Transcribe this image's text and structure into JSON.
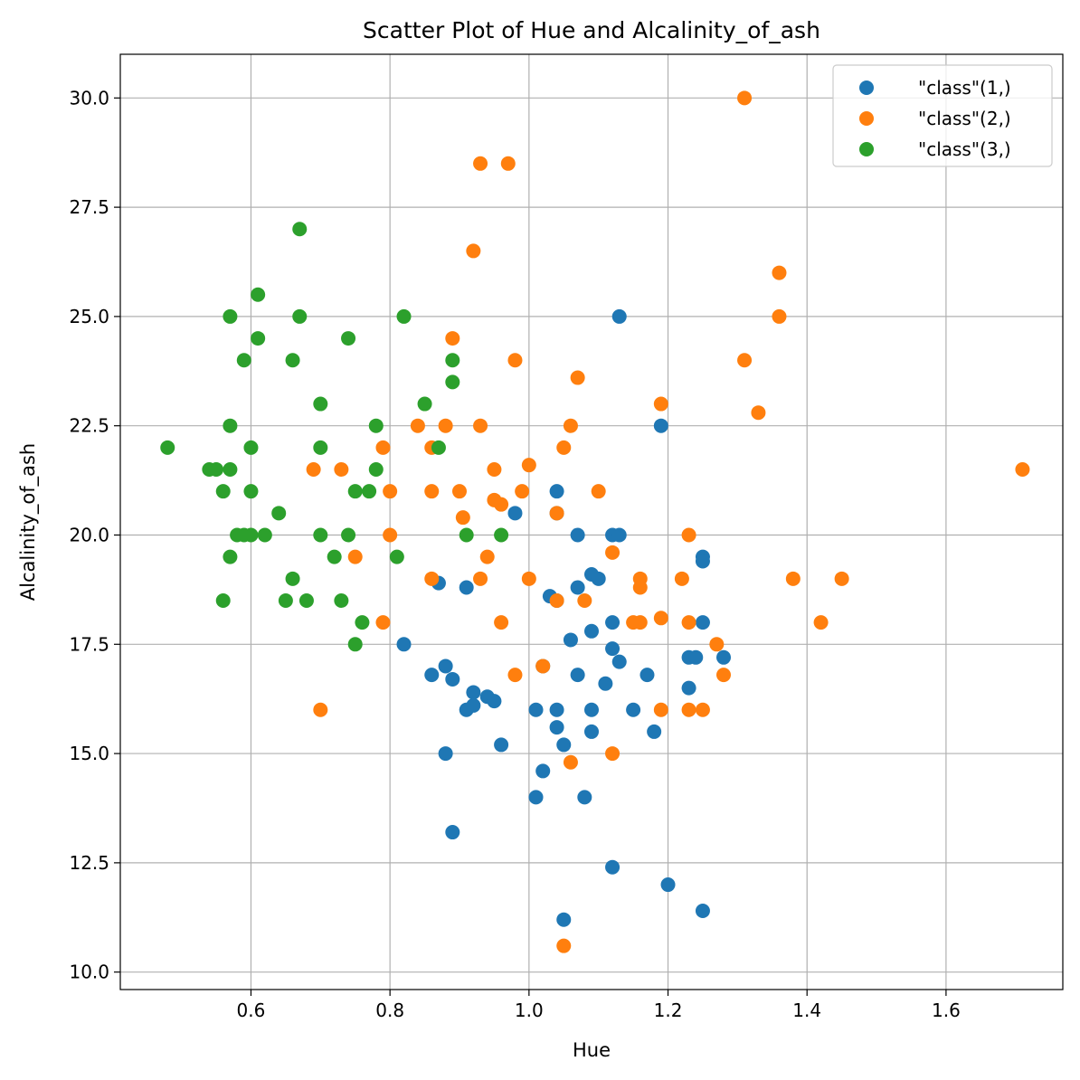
{
  "chart_data": {
    "type": "scatter",
    "title": "Scatter Plot of Hue and Alcalinity_of_ash",
    "xlabel": "Hue",
    "ylabel": "Alcalinity_of_ash",
    "xlim": [
      0.412,
      1.768
    ],
    "ylim": [
      9.6,
      31.0
    ],
    "xticks": [
      "0.6",
      "0.8",
      "1.0",
      "1.2",
      "1.4",
      "1.6"
    ],
    "yticks": [
      "10.0",
      "12.5",
      "15.0",
      "17.5",
      "20.0",
      "22.5",
      "25.0",
      "27.5",
      "30.0"
    ],
    "grid": true,
    "legend_position": "top-right",
    "series": [
      {
        "name": "\"class\"(1,)",
        "color": "#1f77b4",
        "points": [
          [
            1.13,
            25.0
          ],
          [
            1.19,
            22.5
          ],
          [
            0.98,
            20.5
          ],
          [
            1.04,
            21.0
          ],
          [
            1.04,
            20.5
          ],
          [
            1.07,
            20.0
          ],
          [
            1.12,
            20.0
          ],
          [
            1.13,
            20.0
          ],
          [
            1.25,
            19.5
          ],
          [
            1.25,
            19.4
          ],
          [
            1.09,
            19.1
          ],
          [
            1.1,
            19.0
          ],
          [
            0.87,
            18.9
          ],
          [
            0.91,
            18.8
          ],
          [
            1.07,
            18.8
          ],
          [
            1.03,
            18.6
          ],
          [
            1.04,
            18.5
          ],
          [
            1.12,
            18.0
          ],
          [
            1.25,
            18.0
          ],
          [
            1.09,
            17.8
          ],
          [
            1.06,
            17.6
          ],
          [
            0.82,
            17.5
          ],
          [
            1.12,
            17.4
          ],
          [
            1.23,
            17.2
          ],
          [
            1.24,
            17.2
          ],
          [
            1.28,
            17.2
          ],
          [
            1.13,
            17.1
          ],
          [
            0.88,
            17.0
          ],
          [
            1.02,
            17.0
          ],
          [
            0.86,
            16.8
          ],
          [
            1.07,
            16.8
          ],
          [
            1.17,
            16.8
          ],
          [
            0.89,
            16.7
          ],
          [
            1.11,
            16.6
          ],
          [
            1.23,
            16.5
          ],
          [
            0.92,
            16.4
          ],
          [
            0.94,
            16.3
          ],
          [
            0.95,
            16.2
          ],
          [
            0.92,
            16.1
          ],
          [
            0.91,
            16.0
          ],
          [
            1.01,
            16.0
          ],
          [
            1.04,
            16.0
          ],
          [
            1.09,
            16.0
          ],
          [
            1.15,
            16.0
          ],
          [
            1.04,
            15.6
          ],
          [
            1.09,
            15.5
          ],
          [
            1.18,
            15.5
          ],
          [
            0.96,
            15.2
          ],
          [
            1.05,
            15.2
          ],
          [
            0.88,
            15.0
          ],
          [
            1.02,
            14.6
          ],
          [
            1.01,
            14.0
          ],
          [
            1.08,
            14.0
          ],
          [
            0.89,
            13.2
          ],
          [
            1.12,
            12.4
          ],
          [
            1.2,
            12.0
          ],
          [
            1.25,
            11.4
          ],
          [
            1.05,
            11.2
          ]
        ]
      },
      {
        "name": "\"class\"(2,)",
        "color": "#ff7f0e",
        "points": [
          [
            1.31,
            30.0
          ],
          [
            0.93,
            28.5
          ],
          [
            0.97,
            28.5
          ],
          [
            0.92,
            26.5
          ],
          [
            1.36,
            26.0
          ],
          [
            1.36,
            25.0
          ],
          [
            0.89,
            24.5
          ],
          [
            1.31,
            24.0
          ],
          [
            0.98,
            24.0
          ],
          [
            1.07,
            23.6
          ],
          [
            1.19,
            23.0
          ],
          [
            1.33,
            22.8
          ],
          [
            0.84,
            22.5
          ],
          [
            0.88,
            22.5
          ],
          [
            0.93,
            22.5
          ],
          [
            1.06,
            22.5
          ],
          [
            0.79,
            22.0
          ],
          [
            0.86,
            22.0
          ],
          [
            1.05,
            22.0
          ],
          [
            1.71,
            21.5
          ],
          [
            0.69,
            21.5
          ],
          [
            0.73,
            21.5
          ],
          [
            0.95,
            21.5
          ],
          [
            1.0,
            21.6
          ],
          [
            0.8,
            21.0
          ],
          [
            0.86,
            21.0
          ],
          [
            0.9,
            21.0
          ],
          [
            0.99,
            21.0
          ],
          [
            1.1,
            21.0
          ],
          [
            0.95,
            20.8
          ],
          [
            0.96,
            20.7
          ],
          [
            1.04,
            20.5
          ],
          [
            0.905,
            20.4
          ],
          [
            0.8,
            20.0
          ],
          [
            1.23,
            20.0
          ],
          [
            1.12,
            19.6
          ],
          [
            0.75,
            19.5
          ],
          [
            0.94,
            19.5
          ],
          [
            0.86,
            19.0
          ],
          [
            0.93,
            19.0
          ],
          [
            1.0,
            19.0
          ],
          [
            1.16,
            19.0
          ],
          [
            1.22,
            19.0
          ],
          [
            1.38,
            19.0
          ],
          [
            1.45,
            19.0
          ],
          [
            1.16,
            18.8
          ],
          [
            1.04,
            18.5
          ],
          [
            1.08,
            18.5
          ],
          [
            1.19,
            18.1
          ],
          [
            0.79,
            18.0
          ],
          [
            0.96,
            18.0
          ],
          [
            1.15,
            18.0
          ],
          [
            1.16,
            18.0
          ],
          [
            1.23,
            18.0
          ],
          [
            1.42,
            18.0
          ],
          [
            1.27,
            17.5
          ],
          [
            1.02,
            17.0
          ],
          [
            0.98,
            16.8
          ],
          [
            1.28,
            16.8
          ],
          [
            0.7,
            16.0
          ],
          [
            1.19,
            16.0
          ],
          [
            1.23,
            16.0
          ],
          [
            1.25,
            16.0
          ],
          [
            1.12,
            15.0
          ],
          [
            1.06,
            14.8
          ],
          [
            1.05,
            10.6
          ]
        ]
      },
      {
        "name": "\"class\"(3,)",
        "color": "#2ca02c",
        "points": [
          [
            0.67,
            27.0
          ],
          [
            0.61,
            25.5
          ],
          [
            0.57,
            25.0
          ],
          [
            0.67,
            25.0
          ],
          [
            0.82,
            25.0
          ],
          [
            0.61,
            24.5
          ],
          [
            0.74,
            24.5
          ],
          [
            0.59,
            24.0
          ],
          [
            0.66,
            24.0
          ],
          [
            0.89,
            24.0
          ],
          [
            0.89,
            23.5
          ],
          [
            0.7,
            23.0
          ],
          [
            0.85,
            23.0
          ],
          [
            0.57,
            22.5
          ],
          [
            0.78,
            22.5
          ],
          [
            0.48,
            22.0
          ],
          [
            0.6,
            22.0
          ],
          [
            0.7,
            22.0
          ],
          [
            0.87,
            22.0
          ],
          [
            0.54,
            21.5
          ],
          [
            0.55,
            21.5
          ],
          [
            0.57,
            21.5
          ],
          [
            0.78,
            21.5
          ],
          [
            0.56,
            21.0
          ],
          [
            0.6,
            21.0
          ],
          [
            0.75,
            21.0
          ],
          [
            0.77,
            21.0
          ],
          [
            0.64,
            20.5
          ],
          [
            0.58,
            20.0
          ],
          [
            0.59,
            20.0
          ],
          [
            0.6,
            20.0
          ],
          [
            0.62,
            20.0
          ],
          [
            0.7,
            20.0
          ],
          [
            0.74,
            20.0
          ],
          [
            0.91,
            20.0
          ],
          [
            0.96,
            20.0
          ],
          [
            0.57,
            19.5
          ],
          [
            0.72,
            19.5
          ],
          [
            0.81,
            19.5
          ],
          [
            0.66,
            19.0
          ],
          [
            0.56,
            18.5
          ],
          [
            0.65,
            18.5
          ],
          [
            0.68,
            18.5
          ],
          [
            0.73,
            18.5
          ],
          [
            0.76,
            18.0
          ],
          [
            0.75,
            17.5
          ]
        ]
      }
    ]
  }
}
